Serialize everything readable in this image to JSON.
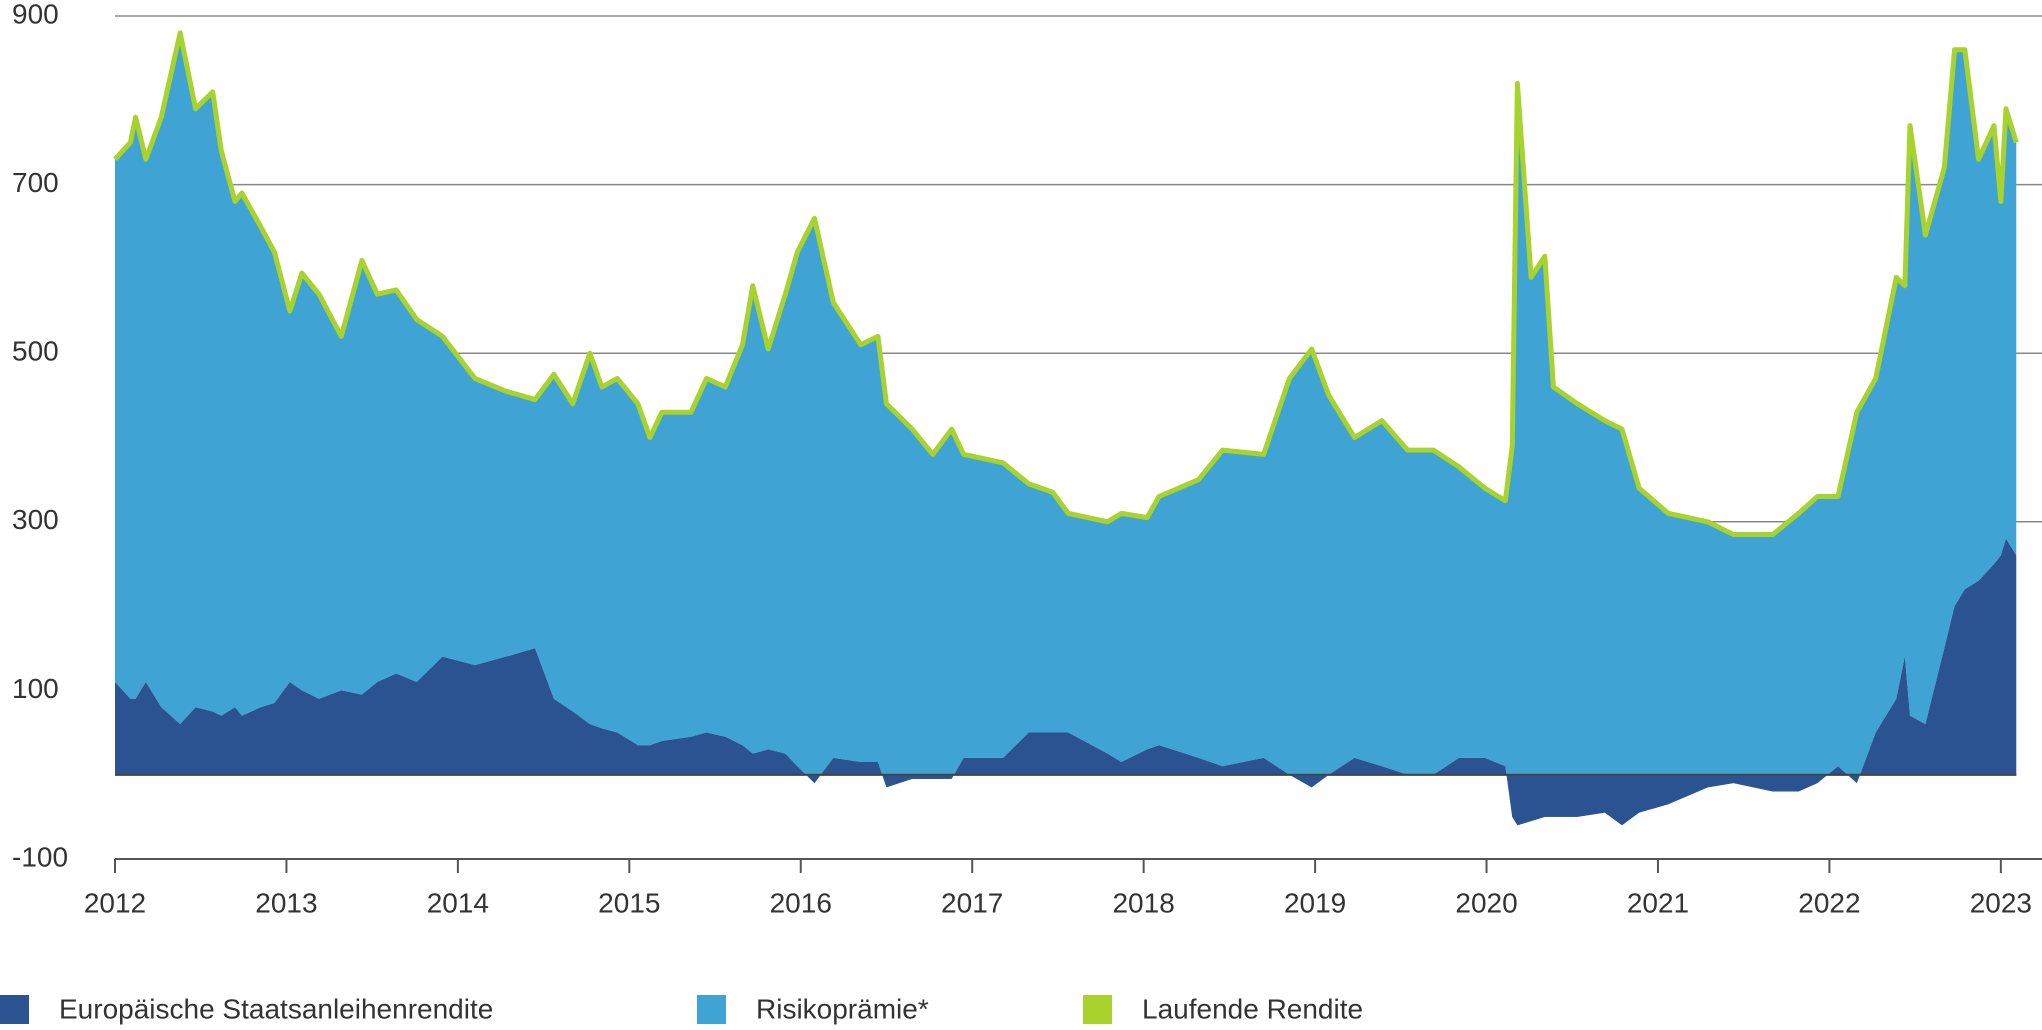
{
  "chart_data": {
    "type": "stacked-area-line",
    "x": [
      2012.0,
      2012.09,
      2012.12,
      2012.18,
      2012.27,
      2012.38,
      2012.47,
      2012.57,
      2012.62,
      2012.7,
      2012.74,
      2012.85,
      2012.93,
      2013.02,
      2013.09,
      2013.19,
      2013.32,
      2013.44,
      2013.53,
      2013.64,
      2013.76,
      2013.91,
      2014.1,
      2014.28,
      2014.45,
      2014.56,
      2014.67,
      2014.77,
      2014.84,
      2014.93,
      2015.05,
      2015.12,
      2015.19,
      2015.36,
      2015.45,
      2015.56,
      2015.66,
      2015.72,
      2015.81,
      2015.91,
      2015.98,
      2016.08,
      2016.19,
      2016.35,
      2016.45,
      2016.5,
      2016.65,
      2016.77,
      2016.88,
      2016.95,
      2017.18,
      2017.33,
      2017.47,
      2017.56,
      2017.79,
      2017.87,
      2018.02,
      2018.09,
      2018.32,
      2018.46,
      2018.7,
      2018.85,
      2018.98,
      2019.08,
      2019.23,
      2019.39,
      2019.54,
      2019.69,
      2019.84,
      2019.99,
      2020.11,
      2020.15,
      2020.18,
      2020.26,
      2020.34,
      2020.39,
      2020.53,
      2020.69,
      2020.79,
      2020.89,
      2021.06,
      2021.29,
      2021.44,
      2021.67,
      2021.82,
      2021.93,
      2022.05,
      2022.16,
      2022.27,
      2022.39,
      2022.44,
      2022.47,
      2022.56,
      2022.67,
      2022.73,
      2022.79,
      2022.87,
      2022.96,
      2023.0,
      2023.03,
      2023.09
    ],
    "series": [
      {
        "name": "Europäische Staatsanleihenrendite",
        "color": "#2b5391",
        "kind": "area",
        "values": [
          110,
          90,
          90,
          110,
          80,
          60,
          80,
          75,
          70,
          80,
          70,
          80,
          85,
          110,
          100,
          90,
          100,
          95,
          110,
          120,
          110,
          140,
          130,
          140,
          150,
          90,
          75,
          60,
          55,
          50,
          35,
          35,
          40,
          45,
          50,
          45,
          35,
          25,
          30,
          25,
          10,
          -10,
          20,
          15,
          15,
          -15,
          -5,
          -5,
          -5,
          20,
          20,
          50,
          50,
          50,
          25,
          15,
          30,
          35,
          20,
          10,
          20,
          0,
          -15,
          0,
          20,
          10,
          0,
          0,
          20,
          20,
          10,
          -50,
          -60,
          -55,
          -50,
          -50,
          -50,
          -45,
          -60,
          -45,
          -35,
          -15,
          -10,
          -20,
          -20,
          -10,
          10,
          -10,
          50,
          90,
          140,
          70,
          60,
          150,
          200,
          220,
          230,
          250,
          260,
          280,
          260
        ]
      },
      {
        "name": "Risikoprämie*",
        "color": "#3fa4d4",
        "kind": "stacked-area",
        "values": [
          620,
          660,
          690,
          620,
          700,
          820,
          710,
          735,
          670,
          600,
          620,
          570,
          535,
          440,
          495,
          480,
          420,
          515,
          460,
          455,
          430,
          380,
          340,
          315,
          295,
          385,
          365,
          440,
          405,
          420,
          405,
          365,
          390,
          385,
          420,
          415,
          475,
          555,
          475,
          545,
          610,
          670,
          540,
          495,
          505,
          455,
          415,
          385,
          415,
          360,
          350,
          295,
          285,
          260,
          275,
          295,
          275,
          295,
          330,
          375,
          360,
          470,
          520,
          450,
          380,
          410,
          385,
          385,
          345,
          320,
          315,
          440,
          880,
          645,
          665,
          510,
          490,
          465,
          470,
          385,
          345,
          315,
          295,
          305,
          330,
          340,
          320,
          440,
          420,
          500,
          440,
          700,
          580,
          570,
          660,
          640,
          500,
          520,
          420,
          510,
          490
        ]
      },
      {
        "name": "Laufende Rendite",
        "color": "#a8d22c",
        "kind": "line",
        "values": [
          730,
          750,
          780,
          730,
          780,
          880,
          790,
          810,
          740,
          680,
          690,
          650,
          620,
          550,
          595,
          570,
          520,
          610,
          570,
          575,
          540,
          520,
          470,
          455,
          445,
          475,
          440,
          500,
          460,
          470,
          440,
          400,
          430,
          430,
          470,
          460,
          510,
          580,
          505,
          570,
          620,
          660,
          560,
          510,
          520,
          440,
          410,
          380,
          410,
          380,
          370,
          345,
          335,
          310,
          300,
          310,
          305,
          330,
          350,
          385,
          380,
          470,
          505,
          450,
          400,
          420,
          385,
          385,
          365,
          340,
          325,
          390,
          820,
          590,
          615,
          460,
          440,
          420,
          410,
          340,
          310,
          300,
          285,
          285,
          310,
          330,
          330,
          430,
          470,
          590,
          580,
          770,
          640,
          720,
          860,
          860,
          730,
          770,
          680,
          790,
          750
        ]
      }
    ],
    "xlim": [
      2012,
      2023.24
    ],
    "xticks": [
      2012,
      2013,
      2014,
      2015,
      2016,
      2017,
      2018,
      2019,
      2020,
      2021,
      2022,
      2023
    ],
    "ylim": [
      -100,
      900
    ],
    "yticks": [
      -100,
      100,
      300,
      500,
      700,
      900
    ],
    "gridlines": [
      0,
      300,
      500,
      700,
      900
    ]
  }
}
